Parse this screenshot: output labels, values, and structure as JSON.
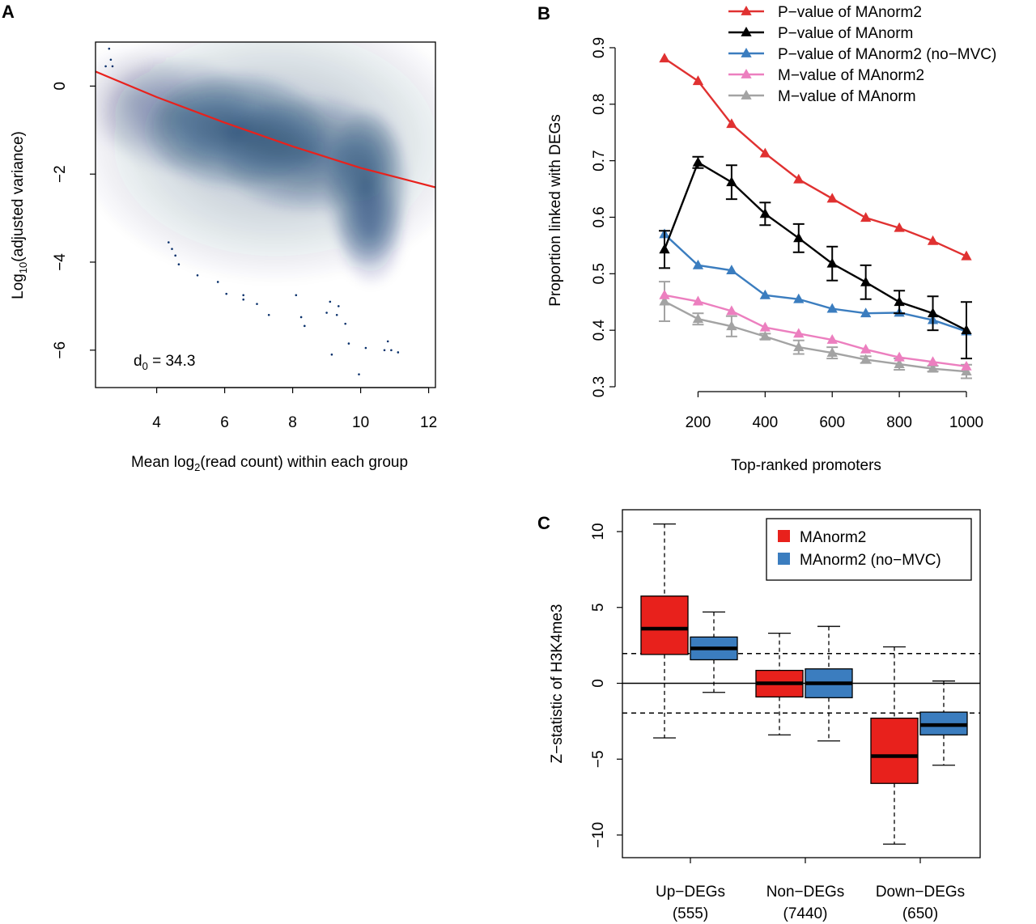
{
  "panels": {
    "A": {
      "letter": "A"
    },
    "B": {
      "letter": "B"
    },
    "C": {
      "letter": "C"
    }
  },
  "chart_data": [
    {
      "id": "A",
      "type": "scatter",
      "title": "",
      "xlabel_prefix": "Mean log",
      "xlabel_sub": "2",
      "xlabel_suffix": "(read count) within each group",
      "ylabel_prefix": "Log",
      "ylabel_sub": "10",
      "ylabel_suffix": "(adjusted variance)",
      "xlim": [
        2.2,
        12.2
      ],
      "ylim": [
        -6.85,
        1.0
      ],
      "xticks": [
        "4",
        "6",
        "8",
        "10",
        "12"
      ],
      "yticks": [
        "0",
        "−2",
        "−4",
        "−6"
      ],
      "annotation_prefix": "d",
      "annotation_sub": "0",
      "annotation_suffix": " = 34.3",
      "fit_line": {
        "color": "#e8211c",
        "points": [
          [
            2.2,
            0.33
          ],
          [
            4.0,
            -0.25
          ],
          [
            6.0,
            -0.83
          ],
          [
            8.0,
            -1.37
          ],
          [
            10.0,
            -1.86
          ],
          [
            12.2,
            -2.3
          ]
        ]
      },
      "density": {
        "color": "#08306b",
        "blobs": [
          {
            "x": 6.3,
            "y": -1.0,
            "sx": 1.2,
            "sy": 0.6,
            "w": 0.95
          },
          {
            "x": 8.5,
            "y": -1.55,
            "sx": 1.2,
            "sy": 0.6,
            "w": 0.8
          },
          {
            "x": 10.2,
            "y": -2.3,
            "sx": 0.55,
            "sy": 0.8,
            "w": 0.9
          },
          {
            "x": 10.3,
            "y": -3.3,
            "sx": 0.45,
            "sy": 0.55,
            "w": 0.5
          },
          {
            "x": 4.6,
            "y": -0.65,
            "sx": 1.0,
            "sy": 0.6,
            "w": 0.45
          },
          {
            "x": 7.5,
            "y": -1.3,
            "sx": 2.6,
            "sy": 1.4,
            "w": 0.35
          },
          {
            "x": 3.3,
            "y": -0.3,
            "sx": 0.8,
            "sy": 0.55,
            "w": 0.25
          }
        ]
      },
      "outliers": [
        [
          2.6,
          0.85
        ],
        [
          2.65,
          0.6
        ],
        [
          2.7,
          0.45
        ],
        [
          2.5,
          0.45
        ],
        [
          4.35,
          -3.55
        ],
        [
          4.45,
          -3.7
        ],
        [
          4.55,
          -3.85
        ],
        [
          4.65,
          -4.05
        ],
        [
          5.2,
          -4.3
        ],
        [
          5.8,
          -4.45
        ],
        [
          6.05,
          -4.72
        ],
        [
          6.55,
          -4.75
        ],
        [
          6.55,
          -4.85
        ],
        [
          6.95,
          -4.95
        ],
        [
          7.3,
          -5.2
        ],
        [
          8.1,
          -4.75
        ],
        [
          8.25,
          -5.25
        ],
        [
          8.35,
          -5.45
        ],
        [
          9.0,
          -5.15
        ],
        [
          9.1,
          -4.9
        ],
        [
          9.3,
          -5.2
        ],
        [
          9.35,
          -5.0
        ],
        [
          9.55,
          -5.4
        ],
        [
          9.65,
          -5.85
        ],
        [
          9.15,
          -6.1
        ],
        [
          10.15,
          -5.95
        ],
        [
          10.8,
          -5.8
        ],
        [
          10.7,
          -6.0
        ],
        [
          10.9,
          -6.0
        ],
        [
          11.1,
          -6.05
        ],
        [
          9.95,
          -6.55
        ]
      ]
    },
    {
      "id": "B",
      "type": "line",
      "xlabel": "Top-ranked promoters",
      "ylabel": "Proportion linked with DEGs",
      "xlim": [
        75,
        1025
      ],
      "ylim": [
        0.3,
        0.92
      ],
      "xticks": [
        "200",
        "400",
        "600",
        "800",
        "1000"
      ],
      "yticks": [
        "0.3",
        "0.4",
        "0.5",
        "0.6",
        "0.7",
        "0.8",
        "0.9"
      ],
      "x": [
        100,
        200,
        300,
        400,
        500,
        600,
        700,
        800,
        900,
        1000
      ],
      "legend_position": "top-right",
      "series": [
        {
          "name": "P−value of MAnorm2",
          "color": "#e03131",
          "values": [
            0.881,
            0.841,
            0.765,
            0.713,
            0.667,
            0.633,
            0.599,
            0.581,
            0.558,
            0.531
          ]
        },
        {
          "name": "P−value of MAnorm",
          "color": "#000000",
          "values": [
            0.543,
            0.697,
            0.662,
            0.606,
            0.563,
            0.518,
            0.485,
            0.45,
            0.43,
            0.4
          ],
          "err": [
            0.033,
            0.01,
            0.03,
            0.02,
            0.025,
            0.03,
            0.03,
            0.02,
            0.03,
            0.05
          ]
        },
        {
          "name": "P−value of MAnorm2 (no−MVC)",
          "color": "#3b7dbf",
          "values": [
            0.57,
            0.515,
            0.506,
            0.462,
            0.455,
            0.438,
            0.43,
            0.431,
            0.418,
            0.398
          ]
        },
        {
          "name": "M−value of MAnorm2",
          "color": "#ec7fbf",
          "values": [
            0.462,
            0.451,
            0.434,
            0.405,
            0.394,
            0.383,
            0.366,
            0.352,
            0.344,
            0.336
          ]
        },
        {
          "name": "M−value of MAnorm",
          "color": "#a3a3a3",
          "values": [
            0.451,
            0.42,
            0.407,
            0.389,
            0.37,
            0.36,
            0.348,
            0.34,
            0.332,
            0.327
          ],
          "err": [
            0.035,
            0.01,
            0.018,
            0.005,
            0.012,
            0.01,
            0.006,
            0.01,
            0.005,
            0.012
          ]
        }
      ]
    },
    {
      "id": "C",
      "type": "box",
      "ylabel": "Z−statistic of H3K4me3",
      "ylim": [
        -12.0,
        11.2
      ],
      "yticks": [
        "10",
        "5",
        "0",
        "−5",
        "−10"
      ],
      "reference_lines": {
        "solid": 0,
        "dashed": [
          1.96,
          -1.96
        ]
      },
      "categories": [
        {
          "label": "Up−DEGs",
          "count": "(555)"
        },
        {
          "label": "Non−DEGs",
          "count": "(7440)"
        },
        {
          "label": "Down−DEGs",
          "count": "(650)"
        }
      ],
      "legend_position": "top-right",
      "series": [
        {
          "name": "MAnorm2",
          "color": "#e8211c",
          "boxes": [
            {
              "min": -3.6,
              "q1": 1.9,
              "median": 3.6,
              "q3": 5.75,
              "max": 10.5
            },
            {
              "min": -3.4,
              "q1": -0.9,
              "median": 0.0,
              "q3": 0.85,
              "max": 3.3
            },
            {
              "min": -10.6,
              "q1": -6.6,
              "median": -4.8,
              "q3": -2.3,
              "max": 2.4
            }
          ]
        },
        {
          "name": "MAnorm2 (no−MVC)",
          "color": "#3b7dbf",
          "boxes": [
            {
              "min": -0.6,
              "q1": 1.55,
              "median": 2.3,
              "q3": 3.05,
              "max": 4.7
            },
            {
              "min": -3.8,
              "q1": -0.95,
              "median": 0.0,
              "q3": 0.95,
              "max": 3.75
            },
            {
              "min": -5.4,
              "q1": -3.4,
              "median": -2.75,
              "q3": -1.9,
              "max": 0.15
            }
          ]
        }
      ]
    }
  ]
}
